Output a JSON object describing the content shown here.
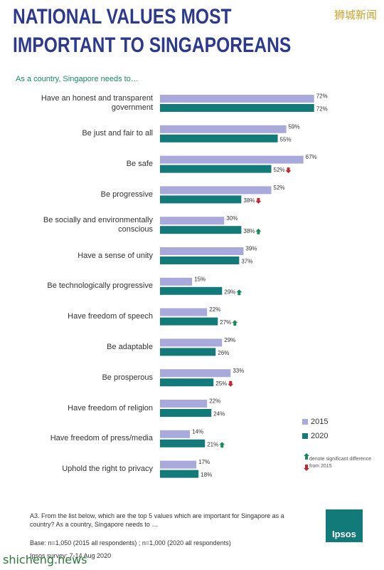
{
  "header": {
    "title": "NATIONAL VALUES MOST IMPORTANT TO SINGAPOREANS",
    "watermark": "狮城新闻"
  },
  "chart_data": {
    "type": "bar",
    "orientation": "horizontal",
    "subtitle": "As a country, Singapore needs to…",
    "categories": [
      "Have an honest and transparent government",
      "Be just and fair to all",
      "Be safe",
      "Be progressive",
      "Be socially and environmentally conscious",
      "Have a sense of unity",
      "Be technologically progressive",
      "Have freedom of speech",
      "Be adaptable",
      "Be prosperous",
      "Have freedom of religion",
      "Have freedom of press/media",
      "Uphold the right to privacy"
    ],
    "series": [
      {
        "name": "2015",
        "color": "#a9a9dc",
        "values": [
          72,
          59,
          67,
          52,
          30,
          39,
          15,
          22,
          29,
          33,
          22,
          14,
          17
        ],
        "value_labels": [
          "72%",
          "59%",
          "67%",
          "52%",
          "30%",
          "39%",
          "15%",
          "22%",
          "29%",
          "33%",
          "22%",
          "14%",
          "17%"
        ]
      },
      {
        "name": "2020",
        "color": "#127a78",
        "values": [
          72,
          55,
          52,
          38,
          38,
          37,
          29,
          27,
          26,
          25,
          24,
          21,
          18
        ],
        "value_labels": [
          "72%",
          "55%",
          "52%",
          "38%",
          "38%",
          "37%",
          "29%",
          "27%",
          "26%",
          "25%",
          "24%",
          "21%",
          "18%"
        ],
        "significance": [
          null,
          null,
          "down",
          "down",
          "up",
          null,
          "up",
          "up",
          null,
          "down",
          null,
          "up",
          null
        ]
      }
    ],
    "significance_note": "denote significant difference from 2015"
  },
  "footnotes": [
    "A3. From the list below, which are the top 5 values which are important for Singapore as a country? As a country, Singapore needs to …",
    "Base: n=1,050 (2015 all respondents) ; n=1,000 (2020 all respondents)",
    "Ipsos survey: 7-14 Aug 2020"
  ],
  "logo": "Ipsos",
  "watermark_bottom": "shicheng.news"
}
